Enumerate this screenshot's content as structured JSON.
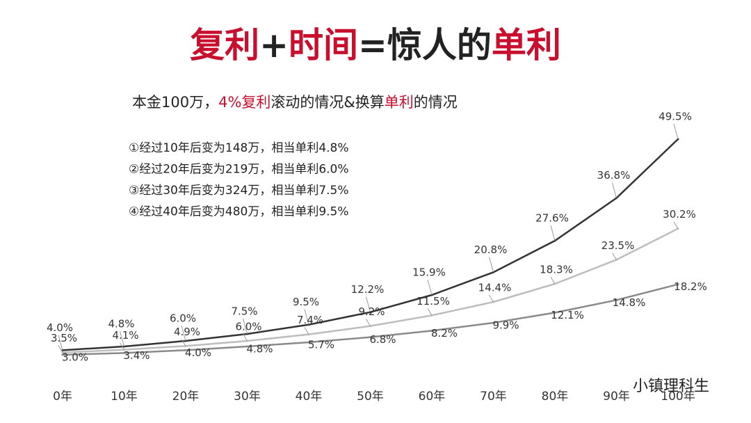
{
  "chart_data": {
    "type": "line",
    "title_parts": [
      {
        "text": "复利",
        "color": "#c8102e"
      },
      {
        "text": "+",
        "color": "#222"
      },
      {
        "text": "时间",
        "color": "#c8102e"
      },
      {
        "text": "=惊人的",
        "color": "#222"
      },
      {
        "text": "单利",
        "color": "#c8102e"
      }
    ],
    "subtitle_parts": [
      {
        "text": "本金100万，",
        "color": "#222"
      },
      {
        "text": "4%复利",
        "color": "#c8102e"
      },
      {
        "text": "滚动的情况&换算",
        "color": "#222"
      },
      {
        "text": "单利",
        "color": "#c8102e"
      },
      {
        "text": "的情况",
        "color": "#222"
      }
    ],
    "notes": [
      "①经过10年后变为148万，相当单利4.8%",
      "②经过20年后变为219万，相当单利6.0%",
      "③经过30年后变为324万，相当单利7.5%",
      "④经过40年后变为480万，相当单利9.5%"
    ],
    "categories": [
      "0年",
      "10年",
      "20年",
      "30年",
      "40年",
      "50年",
      "60年",
      "70年",
      "80年",
      "90年",
      "100年"
    ],
    "series": [
      {
        "color": "#333333",
        "values": [
          4.0,
          4.8,
          6.0,
          7.5,
          9.5,
          12.2,
          15.9,
          20.8,
          27.6,
          36.8,
          49.5
        ],
        "value_labels": [
          "4.0%",
          "4.8%",
          "6.0%",
          "7.5%",
          "9.5%",
          "12.2%",
          "15.9%",
          "20.8%",
          "27.6%",
          "36.8%",
          "49.5%"
        ]
      },
      {
        "color": "#bdbdbd",
        "values": [
          3.5,
          4.1,
          4.9,
          6.0,
          7.4,
          9.2,
          11.5,
          14.4,
          18.3,
          23.5,
          30.2
        ],
        "value_labels": [
          "3.5%",
          "4.1%",
          "4.9%",
          "6.0%",
          "7.4%",
          "9.2%",
          "11.5%",
          "14.4%",
          "18.3%",
          "23.5%",
          "30.2%"
        ]
      },
      {
        "color": "#8a8a8a",
        "values": [
          3.0,
          3.4,
          4.0,
          4.8,
          5.7,
          6.8,
          8.2,
          9.9,
          12.1,
          14.8,
          18.2
        ],
        "value_labels": [
          "3.0%",
          "3.4%",
          "4.0%",
          "4.8%",
          "5.7%",
          "6.8%",
          "8.2%",
          "9.9%",
          "12.1%",
          "14.8%",
          "18.2%"
        ]
      }
    ],
    "watermark": "小镇理科生"
  }
}
